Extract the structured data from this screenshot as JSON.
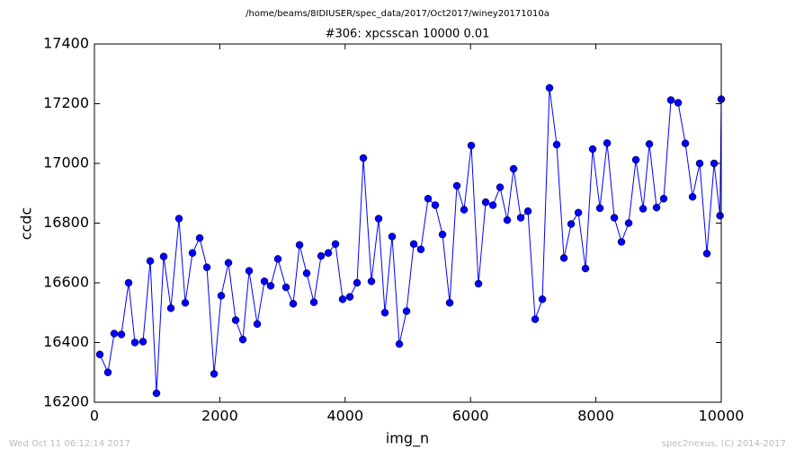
{
  "chart_data": {
    "type": "line",
    "suptitle": "/home/beams/8IDIUSER/spec_data/2017/Oct2017/winey20171010a",
    "title": "#306: xpcsscan 10000 0.01",
    "x_label": "img_n",
    "y_label": "ccdc",
    "footer_left": "Wed Oct 11 06:12:14 2017",
    "footer_right": "spec2nexus, (C) 2014-2017",
    "color": "#0000ff",
    "marker": "circle",
    "x": [
      86,
      215,
      316,
      430,
      545,
      646,
      775,
      890,
      990,
      1105,
      1220,
      1349,
      1449,
      1564,
      1679,
      1794,
      1909,
      2023,
      2138,
      2253,
      2368,
      2468,
      2597,
      2712,
      2812,
      2927,
      3056,
      3171,
      3272,
      3386,
      3501,
      3616,
      3731,
      3845,
      3960,
      4075,
      4190,
      4290,
      4419,
      4534,
      4634,
      4749,
      4864,
      4979,
      5094,
      5208,
      5323,
      5438,
      5553,
      5668,
      5782,
      5897,
      6012,
      6127,
      6242,
      6357,
      6471,
      6586,
      6687,
      6801,
      6916,
      7031,
      7146,
      7260,
      7375,
      7490,
      7605,
      7720,
      7834,
      7949,
      8064,
      8179,
      8294,
      8408,
      8523,
      8638,
      8753,
      8853,
      8968,
      9082,
      9197,
      9312,
      9427,
      9542,
      9656,
      9771,
      9886,
      9980,
      10000
    ],
    "values": [
      16360,
      16300,
      16430,
      16427,
      16600,
      16400,
      16403,
      16673,
      16230,
      16688,
      16515,
      16815,
      16533,
      16700,
      16750,
      16652,
      16295,
      16557,
      16667,
      16475,
      16410,
      16640,
      16462,
      16605,
      16590,
      16680,
      16585,
      16530,
      16727,
      16632,
      16535,
      16690,
      16700,
      16730,
      16545,
      16553,
      16600,
      17018,
      16605,
      16815,
      16500,
      16755,
      16395,
      16505,
      16730,
      16712,
      16882,
      16860,
      16762,
      16533,
      16925,
      16845,
      17060,
      16597,
      16870,
      16860,
      16920,
      16810,
      16982,
      16818,
      16840,
      16478,
      16545,
      17253,
      17063,
      16683,
      16797,
      16835,
      16648,
      17048,
      16850,
      17068,
      16818,
      16737,
      16800,
      17012,
      16848,
      17065,
      16852,
      16882,
      17212,
      17203,
      17067,
      16888,
      17000,
      16698,
      17000,
      16825,
      17215
    ],
    "xlim": [
      0,
      10000
    ],
    "xticks": [
      0,
      2000,
      4000,
      6000,
      8000,
      10000
    ],
    "ylim": [
      16200,
      17400
    ],
    "yticks": [
      16200,
      16400,
      16600,
      16800,
      17000,
      17200,
      17400
    ]
  }
}
